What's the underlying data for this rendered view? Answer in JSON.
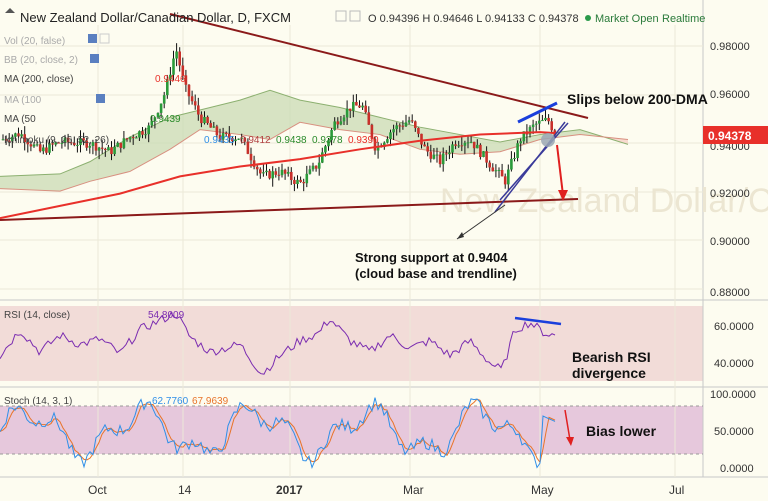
{
  "header": {
    "title": "New Zealand Dollar/Canadian Dollar, D, FXCM",
    "ohlc": "O 0.94396 H 0.94646 L 0.94133 C 0.94378",
    "market_status": "Market Open",
    "realtime": "Realtime"
  },
  "indicators": {
    "vol": "Vol (20, false)",
    "bb": "BB (20, close, 2)",
    "ma200": "MA (200, close)",
    "ma200_value": "0.9446",
    "ma100": "MA (100",
    "ma50": "MA (50",
    "ma50_value": "0.9439",
    "ichimoku": "Ichimoku (9, 26, 52, 26)",
    "ichimoku_values": [
      "0.9435",
      "0.9412",
      "0.9438",
      "0.9378",
      "0.9390"
    ]
  },
  "price_axis": {
    "ticks": [
      "0.98000",
      "0.96000",
      "0.94000",
      "0.92000",
      "0.90000",
      "0.88000"
    ],
    "current": "0.94378"
  },
  "rsi": {
    "label": "RSI (14, close)",
    "value": "54.8009",
    "ticks": [
      "60.0000",
      "40.0000"
    ]
  },
  "stoch": {
    "label": "Stoch (14, 3, 1)",
    "k_value": "62.7760",
    "d_value": "67.9639",
    "ticks": [
      "100.0000",
      "50.0000",
      "0.0000"
    ]
  },
  "time_axis": {
    "labels": [
      "Oct",
      "14",
      "2017",
      "Mar",
      "May",
      "Jul"
    ]
  },
  "annotations": {
    "slips": "Slips below 200-DMA",
    "support_line1": "Strong support at 0.9404",
    "support_line2": "(cloud base and trendline)",
    "rsi_div_line1": "Bearish RSI",
    "rsi_div_line2": "divergence",
    "bias": "Bias lower"
  },
  "watermark": "New Zealand Dollar/Canadian Dollar",
  "colors": {
    "background": "#fdfcf0",
    "rsi_band": "#f2dcd8",
    "stoch_band": "#e6c8dc",
    "ma200": "#e8302a",
    "trendline": "#8b1a1a",
    "cloud_bull": "#c9dbb4",
    "cloud_bear": "#f6cfc4",
    "annotation_blue": "#1a3fdc",
    "arrow_red": "#e02020",
    "rsi_line": "#7a2bb0",
    "stoch_k": "#2f8fe8",
    "stoch_d": "#e8742a",
    "price_label_bg": "#e8302a"
  },
  "chart_data": {
    "type": "candlestick",
    "instrument": "New Zealand Dollar/Canadian Dollar",
    "timeframe": "D",
    "ohlc_last": {
      "open": 0.94396,
      "high": 0.94646,
      "low": 0.94133,
      "close": 0.94378
    },
    "ylim": [
      0.875,
      0.99
    ],
    "ma200_last": 0.9446,
    "ma50_last": 0.9439,
    "x_categories": [
      "Oct",
      "14",
      "2017",
      "Mar",
      "May",
      "Jul"
    ],
    "support_level": 0.9404,
    "rsi_last": 54.8009,
    "stoch_k_last": 62.776,
    "stoch_d_last": 67.9639
  }
}
